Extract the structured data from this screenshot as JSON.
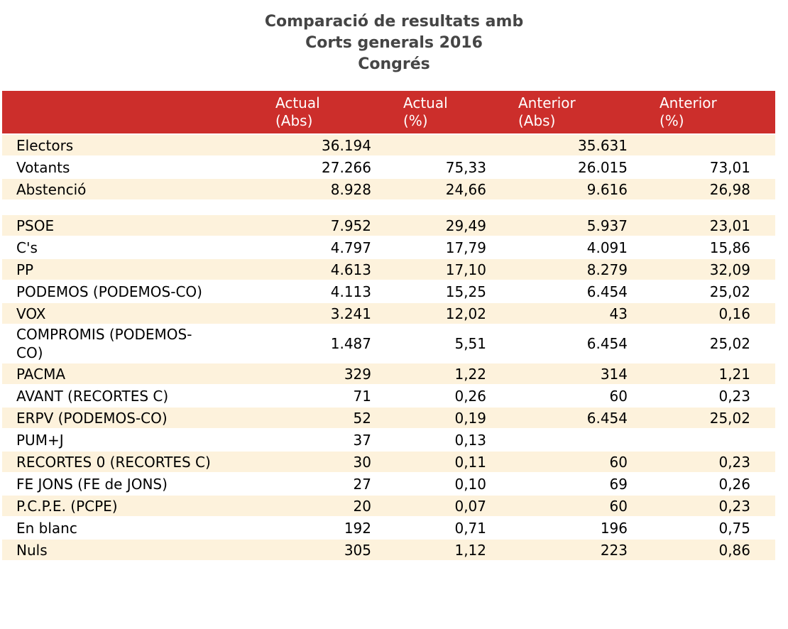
{
  "title": {
    "lines": [
      "Comparació de resultats amb",
      "Corts generals 2016",
      "Congrés"
    ]
  },
  "colors": {
    "header_bg": "#cc2e2b",
    "header_text": "#ffffff",
    "row_stripe": "#fdf2dc",
    "row_plain": "#ffffff",
    "title_text": "#454545",
    "body_text": "#000000"
  },
  "chart_data": {
    "type": "table",
    "title": "Comparació de resultats amb Corts generals 2016 — Congrés",
    "columns": [
      "",
      "Actual (Abs)",
      "Actual (%)",
      "Anterior (Abs)",
      "Anterior (%)"
    ],
    "rows": [
      [
        "Electors",
        "36.194",
        "",
        "35.631",
        ""
      ],
      [
        "Votants",
        "27.266",
        "75,33",
        "26.015",
        "73,01"
      ],
      [
        "Abstenció",
        "8.928",
        "24,66",
        "9.616",
        "26,98"
      ],
      [
        "PSOE",
        "7.952",
        "29,49",
        "5.937",
        "23,01"
      ],
      [
        "C's",
        "4.797",
        "17,79",
        "4.091",
        "15,86"
      ],
      [
        "PP",
        "4.613",
        "17,10",
        "8.279",
        "32,09"
      ],
      [
        "PODEMOS (PODEMOS-CO)",
        "4.113",
        "15,25",
        "6.454",
        "25,02"
      ],
      [
        "VOX",
        "3.241",
        "12,02",
        "43",
        "0,16"
      ],
      [
        "COMPROMIS (PODEMOS-CO)",
        "1.487",
        "5,51",
        "6.454",
        "25,02"
      ],
      [
        "PACMA",
        "329",
        "1,22",
        "314",
        "1,21"
      ],
      [
        "AVANT (RECORTES C)",
        "71",
        "0,26",
        "60",
        "0,23"
      ],
      [
        "ERPV (PODEMOS-CO)",
        "52",
        "0,19",
        "6.454",
        "25,02"
      ],
      [
        "PUM+J",
        "37",
        "0,13",
        "",
        ""
      ],
      [
        "RECORTES 0 (RECORTES C)",
        "30",
        "0,11",
        "60",
        "0,23"
      ],
      [
        "FE JONS (FE de JONS)",
        "27",
        "0,10",
        "69",
        "0,26"
      ],
      [
        "P.C.P.E. (PCPE)",
        "20",
        "0,07",
        "60",
        "0,23"
      ],
      [
        "En blanc",
        "192",
        "0,71",
        "196",
        "0,75"
      ],
      [
        "Nuls",
        "305",
        "1,12",
        "223",
        "0,86"
      ]
    ]
  },
  "table": {
    "headers": [
      "",
      "Actual\n(Abs)",
      "Actual\n(%)",
      "Anterior\n(Abs)",
      "Anterior\n(%)"
    ],
    "layout": [
      {
        "row": 0,
        "shaded": true
      },
      {
        "row": 1,
        "shaded": false
      },
      {
        "row": 2,
        "shaded": true
      },
      {
        "spacer": true
      },
      {
        "row": 3,
        "shaded": true
      },
      {
        "row": 4,
        "shaded": false
      },
      {
        "row": 5,
        "shaded": true
      },
      {
        "row": 6,
        "shaded": false
      },
      {
        "row": 7,
        "shaded": true
      },
      {
        "row": 8,
        "shaded": false,
        "label_display": "COMPROMIS (PODEMOS-\nCO)"
      },
      {
        "row": 9,
        "shaded": true
      },
      {
        "row": 10,
        "shaded": false
      },
      {
        "row": 11,
        "shaded": true
      },
      {
        "row": 12,
        "shaded": false
      },
      {
        "row": 13,
        "shaded": true
      },
      {
        "row": 14,
        "shaded": false
      },
      {
        "row": 15,
        "shaded": true
      },
      {
        "row": 16,
        "shaded": false
      },
      {
        "row": 17,
        "shaded": true
      }
    ]
  }
}
